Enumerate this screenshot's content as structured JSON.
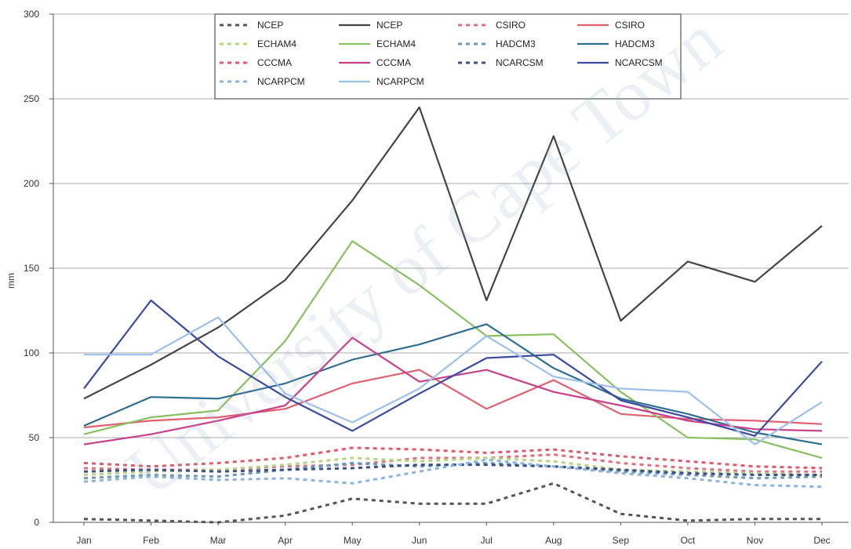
{
  "chart_data": {
    "type": "line",
    "ylabel": "mm",
    "ylim": [
      0,
      300
    ],
    "yticks": [
      0,
      50,
      100,
      150,
      200,
      250,
      300
    ],
    "ytick_labels": [
      "0",
      "50",
      "100",
      "150",
      "200",
      "250",
      "300"
    ],
    "categories": [
      "Jan",
      "Feb",
      "Mar",
      "Apr",
      "May",
      "Jun",
      "Jul",
      "Aug",
      "Sep",
      "Oct",
      "Nov",
      "Dec"
    ],
    "grid": "horizontal",
    "legend_position": "top-center",
    "watermark": "University of Cape Town",
    "series": [
      {
        "name": "NCEP",
        "color": "#555555",
        "dashed": true,
        "values": [
          2,
          1,
          0,
          4,
          14,
          11,
          11,
          23,
          5,
          1,
          2,
          2
        ]
      },
      {
        "name": "NCEP",
        "color": "#444444",
        "dashed": false,
        "values": [
          73,
          93,
          115,
          143,
          190,
          245,
          131,
          228,
          119,
          154,
          142,
          175
        ]
      },
      {
        "name": "CSIRO",
        "color": "#e07080",
        "dashed": true,
        "values": [
          32,
          31,
          31,
          33,
          34,
          38,
          38,
          40,
          35,
          32,
          30,
          30
        ]
      },
      {
        "name": "CSIRO",
        "color": "#e06070",
        "dashed": false,
        "values": [
          56,
          60,
          62,
          67,
          82,
          90,
          67,
          84,
          64,
          61,
          60,
          58
        ]
      },
      {
        "name": "ECHAM4",
        "color": "#b5d585",
        "dashed": true,
        "values": [
          28,
          30,
          31,
          34,
          38,
          36,
          38,
          36,
          31,
          30,
          29,
          28
        ]
      },
      {
        "name": "ECHAM4",
        "color": "#88c060",
        "dashed": false,
        "values": [
          52,
          62,
          66,
          107,
          166,
          140,
          110,
          111,
          77,
          50,
          49,
          38
        ]
      },
      {
        "name": "HADCM3",
        "color": "#6a9ab8",
        "dashed": true,
        "values": [
          26,
          28,
          27,
          31,
          35,
          33,
          35,
          33,
          30,
          28,
          26,
          27
        ]
      },
      {
        "name": "HADCM3",
        "color": "#2f6e90",
        "dashed": false,
        "values": [
          57,
          74,
          73,
          82,
          96,
          105,
          117,
          91,
          73,
          64,
          53,
          46
        ]
      },
      {
        "name": "CCCMA",
        "color": "#e05a6a",
        "dashed": true,
        "values": [
          35,
          33,
          35,
          38,
          44,
          43,
          41,
          43,
          39,
          36,
          33,
          32
        ]
      },
      {
        "name": "CCCMA",
        "color": "#c8408a",
        "dashed": false,
        "values": [
          46,
          52,
          60,
          69,
          109,
          83,
          90,
          77,
          69,
          60,
          55,
          54
        ]
      },
      {
        "name": "NCARCSM",
        "color": "#3d4f8a",
        "dashed": true,
        "values": [
          30,
          31,
          30,
          31,
          32,
          34,
          34,
          33,
          31,
          29,
          28,
          28
        ]
      },
      {
        "name": "NCARCSM",
        "color": "#3a4aa0",
        "dashed": false,
        "values": [
          79,
          131,
          98,
          74,
          54,
          76,
          97,
          99,
          72,
          62,
          51,
          95
        ]
      },
      {
        "name": "NCARPCM",
        "color": "#8ab4e0",
        "dashed": true,
        "values": [
          24,
          27,
          25,
          26,
          23,
          30,
          37,
          33,
          29,
          26,
          22,
          21
        ]
      },
      {
        "name": "NCARPCM",
        "color": "#9cc0ea",
        "dashed": false,
        "values": [
          99,
          99,
          121,
          76,
          59,
          79,
          110,
          86,
          79,
          77,
          46,
          71
        ]
      }
    ]
  }
}
